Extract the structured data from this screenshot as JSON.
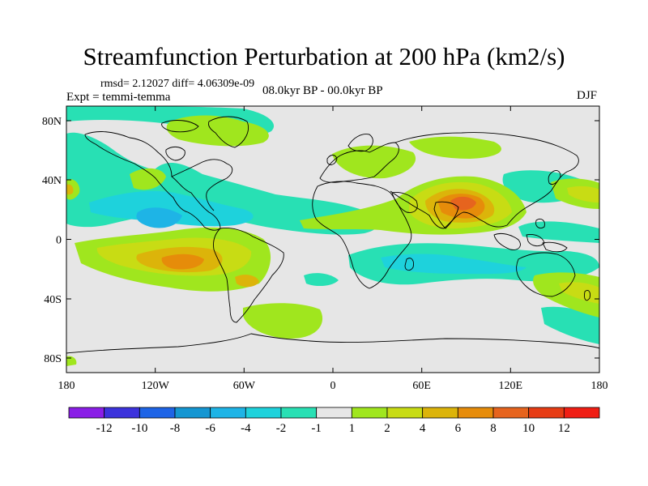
{
  "header": {
    "title": "Streamfunction Perturbation at 200 hPa (km2/s)",
    "stats": "rmsd= 2.12027 diff= 4.06309e-09",
    "experiment": "Expt = temmi-temma",
    "period": "08.0kyr BP - 00.0kyr BP",
    "season": "DJF"
  },
  "map": {
    "projection": "cylindrical equidistant",
    "background": "#e6e6e6",
    "lon_ticks": [
      "180",
      "120W",
      "60W",
      "0",
      "60E",
      "120E",
      "180"
    ],
    "lat_ticks": [
      "80N",
      "40N",
      "0",
      "40S",
      "80S"
    ]
  },
  "colorbar": {
    "colors": [
      "#8a1ee6",
      "#3c32dc",
      "#1e64e6",
      "#1496d2",
      "#1eb4e6",
      "#1ed2dc",
      "#28e0b4",
      "#e6e6e6",
      "#a0e61e",
      "#c8dc14",
      "#dcb40a",
      "#e68c0a",
      "#e6641e",
      "#e63c14",
      "#f01e14"
    ],
    "labels": [
      "-12",
      "-10",
      "-8",
      "-6",
      "-4",
      "-2",
      "-1",
      "1",
      "2",
      "4",
      "6",
      "8",
      "10",
      "12"
    ]
  }
}
